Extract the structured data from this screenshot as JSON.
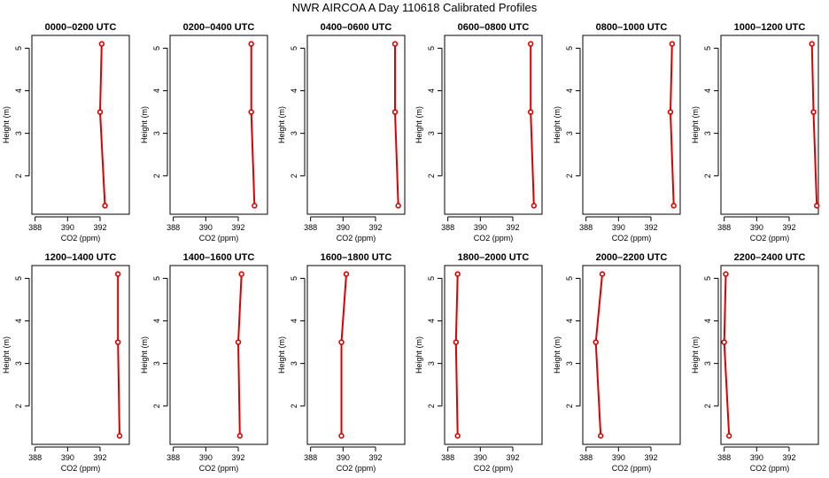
{
  "page": {
    "title": "NWR AIRCOA A  Day 110618  Calibrated Profiles"
  },
  "style": {
    "line_color": "#dd0000",
    "marker_color": "#dd0000"
  },
  "chart_data": [
    {
      "type": "line",
      "title": "0000–0200 UTC",
      "xlabel": "CO2 (ppm)",
      "ylabel": "Height (m)",
      "xlim": [
        387.8,
        393.8
      ],
      "ylim": [
        1.1,
        5.3
      ],
      "xticks": [
        388,
        390,
        392
      ],
      "yticks": [
        2,
        3,
        4,
        5
      ],
      "series": [
        {
          "x": [
            392.1,
            392.0,
            392.3
          ],
          "y": [
            5.1,
            3.5,
            1.3
          ]
        }
      ]
    },
    {
      "type": "line",
      "title": "0200–0400 UTC",
      "xlabel": "CO2 (ppm)",
      "ylabel": "Height (m)",
      "xlim": [
        387.8,
        393.8
      ],
      "ylim": [
        1.1,
        5.3
      ],
      "xticks": [
        388,
        390,
        392
      ],
      "yticks": [
        2,
        3,
        4,
        5
      ],
      "series": [
        {
          "x": [
            392.8,
            392.8,
            393.0
          ],
          "y": [
            5.1,
            3.5,
            1.3
          ]
        }
      ]
    },
    {
      "type": "line",
      "title": "0400–0600 UTC",
      "xlabel": "CO2 (ppm)",
      "ylabel": "Height (m)",
      "xlim": [
        387.8,
        393.8
      ],
      "ylim": [
        1.1,
        5.3
      ],
      "xticks": [
        388,
        390,
        392
      ],
      "yticks": [
        2,
        3,
        4,
        5
      ],
      "series": [
        {
          "x": [
            393.2,
            393.2,
            393.4
          ],
          "y": [
            5.1,
            3.5,
            1.3
          ]
        }
      ]
    },
    {
      "type": "line",
      "title": "0600–0800 UTC",
      "xlabel": "CO2 (ppm)",
      "ylabel": "Height (m)",
      "xlim": [
        387.8,
        393.8
      ],
      "ylim": [
        1.1,
        5.3
      ],
      "xticks": [
        388,
        390,
        392
      ],
      "yticks": [
        2,
        3,
        4,
        5
      ],
      "series": [
        {
          "x": [
            393.1,
            393.1,
            393.3
          ],
          "y": [
            5.1,
            3.5,
            1.3
          ]
        }
      ]
    },
    {
      "type": "line",
      "title": "0800–1000 UTC",
      "xlabel": "CO2 (ppm)",
      "ylabel": "Height (m)",
      "xlim": [
        387.8,
        393.8
      ],
      "ylim": [
        1.1,
        5.3
      ],
      "xticks": [
        388,
        390,
        392
      ],
      "yticks": [
        2,
        3,
        4,
        5
      ],
      "series": [
        {
          "x": [
            393.3,
            393.2,
            393.4
          ],
          "y": [
            5.1,
            3.5,
            1.3
          ]
        }
      ]
    },
    {
      "type": "line",
      "title": "1000–1200 UTC",
      "xlabel": "CO2 (ppm)",
      "ylabel": "Height (m)",
      "xlim": [
        387.8,
        393.8
      ],
      "ylim": [
        1.1,
        5.3
      ],
      "xticks": [
        388,
        390,
        392
      ],
      "yticks": [
        2,
        3,
        4,
        5
      ],
      "series": [
        {
          "x": [
            393.4,
            393.5,
            393.7
          ],
          "y": [
            5.1,
            3.5,
            1.3
          ]
        }
      ]
    },
    {
      "type": "line",
      "title": "1200–1400 UTC",
      "xlabel": "CO2 (ppm)",
      "ylabel": "Height (m)",
      "xlim": [
        387.8,
        393.8
      ],
      "ylim": [
        1.1,
        5.3
      ],
      "xticks": [
        388,
        390,
        392
      ],
      "yticks": [
        2,
        3,
        4,
        5
      ],
      "series": [
        {
          "x": [
            393.1,
            393.1,
            393.2
          ],
          "y": [
            5.1,
            3.5,
            1.3
          ]
        }
      ]
    },
    {
      "type": "line",
      "title": "1400–1600 UTC",
      "xlabel": "CO2 (ppm)",
      "ylabel": "Height (m)",
      "xlim": [
        387.8,
        393.8
      ],
      "ylim": [
        1.1,
        5.3
      ],
      "xticks": [
        388,
        390,
        392
      ],
      "yticks": [
        2,
        3,
        4,
        5
      ],
      "series": [
        {
          "x": [
            392.2,
            392.0,
            392.1
          ],
          "y": [
            5.1,
            3.5,
            1.3
          ]
        }
      ]
    },
    {
      "type": "line",
      "title": "1600–1800 UTC",
      "xlabel": "CO2 (ppm)",
      "ylabel": "Height (m)",
      "xlim": [
        387.8,
        393.8
      ],
      "ylim": [
        1.1,
        5.3
      ],
      "xticks": [
        388,
        390,
        392
      ],
      "yticks": [
        2,
        3,
        4,
        5
      ],
      "series": [
        {
          "x": [
            390.2,
            389.9,
            389.9
          ],
          "y": [
            5.1,
            3.5,
            1.3
          ]
        }
      ]
    },
    {
      "type": "line",
      "title": "1800–2000 UTC",
      "xlabel": "CO2 (ppm)",
      "ylabel": "Height (m)",
      "xlim": [
        387.8,
        393.8
      ],
      "ylim": [
        1.1,
        5.3
      ],
      "xticks": [
        388,
        390,
        392
      ],
      "yticks": [
        2,
        3,
        4,
        5
      ],
      "series": [
        {
          "x": [
            388.6,
            388.5,
            388.6
          ],
          "y": [
            5.1,
            3.5,
            1.3
          ]
        }
      ]
    },
    {
      "type": "line",
      "title": "2000–2200 UTC",
      "xlabel": "CO2 (ppm)",
      "ylabel": "Height (m)",
      "xlim": [
        387.8,
        393.8
      ],
      "ylim": [
        1.1,
        5.3
      ],
      "xticks": [
        388,
        390,
        392
      ],
      "yticks": [
        2,
        3,
        4,
        5
      ],
      "series": [
        {
          "x": [
            389.0,
            388.6,
            388.9
          ],
          "y": [
            5.1,
            3.5,
            1.3
          ]
        }
      ]
    },
    {
      "type": "line",
      "title": "2200–2400 UTC",
      "xlabel": "CO2 (ppm)",
      "ylabel": "Height (m)",
      "xlim": [
        387.8,
        393.8
      ],
      "ylim": [
        1.1,
        5.3
      ],
      "xticks": [
        388,
        390,
        392
      ],
      "yticks": [
        2,
        3,
        4,
        5
      ],
      "series": [
        {
          "x": [
            388.1,
            388.0,
            388.3
          ],
          "y": [
            5.1,
            3.5,
            1.3
          ]
        }
      ]
    }
  ]
}
